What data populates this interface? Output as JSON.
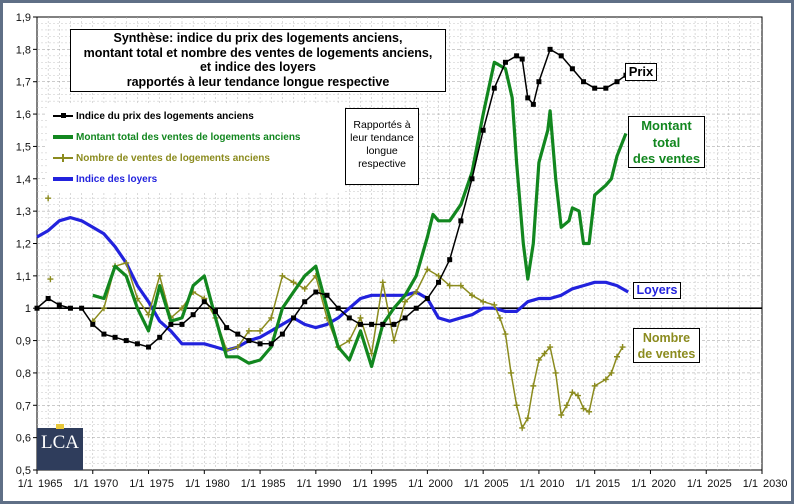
{
  "chart_data": {
    "type": "line",
    "title": "Synthèse: indice du prix des logements anciens,\nmontant total et nombre des ventes de logements anciens,\net indice des loyers\nrapportés à leur tendance longue respective",
    "note": "Rapportés à\nleur tendance\nlongue\nrespective",
    "ylim": [
      0.5,
      1.9
    ],
    "yticks": [
      "0,5",
      "0,6",
      "0,7",
      "0,8",
      "0,9",
      "1",
      "1,1",
      "1,2",
      "1,3",
      "1,4",
      "1,5",
      "1,6",
      "1,7",
      "1,8",
      "1,9"
    ],
    "xlim": [
      1965,
      2030
    ],
    "xticks": [
      {
        "value": 1965,
        "label": "1/1 1965"
      },
      {
        "value": 1970,
        "label": "1/1 1970"
      },
      {
        "value": 1975,
        "label": "1/1 1975"
      },
      {
        "value": 1980,
        "label": "1/1 1980"
      },
      {
        "value": 1985,
        "label": "1/1 1985"
      },
      {
        "value": 1990,
        "label": "1/1 1990"
      },
      {
        "value": 1995,
        "label": "1/1 1995"
      },
      {
        "value": 2000,
        "label": "1/1 2000"
      },
      {
        "value": 2005,
        "label": "1/1 2005"
      },
      {
        "value": 2010,
        "label": "1/1 2010"
      },
      {
        "value": 2015,
        "label": "1/1 2015"
      },
      {
        "value": 2020,
        "label": "1/1 2020"
      },
      {
        "value": 2025,
        "label": "1/1 2025"
      },
      {
        "value": 2030,
        "label": "1/1 2030"
      }
    ],
    "reference_line": 1.0,
    "series": [
      {
        "name": "Indice du prix des logements anciens",
        "end_label": "Prix",
        "color": "#000000",
        "marker": "square",
        "points": [
          [
            1965,
            1.0
          ],
          [
            1966,
            1.03
          ],
          [
            1967,
            1.01
          ],
          [
            1968,
            1.0
          ],
          [
            1969,
            1.0
          ],
          [
            1970,
            0.95
          ],
          [
            1971,
            0.92
          ],
          [
            1972,
            0.91
          ],
          [
            1973,
            0.9
          ],
          [
            1974,
            0.89
          ],
          [
            1975,
            0.88
          ],
          [
            1976,
            0.91
          ],
          [
            1977,
            0.95
          ],
          [
            1978,
            0.95
          ],
          [
            1979,
            0.98
          ],
          [
            1980,
            1.02
          ],
          [
            1981,
            0.99
          ],
          [
            1982,
            0.94
          ],
          [
            1983,
            0.92
          ],
          [
            1984,
            0.9
          ],
          [
            1985,
            0.89
          ],
          [
            1986,
            0.89
          ],
          [
            1987,
            0.92
          ],
          [
            1988,
            0.97
          ],
          [
            1989,
            1.02
          ],
          [
            1990,
            1.05
          ],
          [
            1991,
            1.04
          ],
          [
            1992,
            1.0
          ],
          [
            1993,
            0.97
          ],
          [
            1994,
            0.95
          ],
          [
            1995,
            0.95
          ],
          [
            1996,
            0.95
          ],
          [
            1997,
            0.95
          ],
          [
            1998,
            0.97
          ],
          [
            1999,
            1.0
          ],
          [
            2000,
            1.03
          ],
          [
            2001,
            1.08
          ],
          [
            2002,
            1.15
          ],
          [
            2003,
            1.27
          ],
          [
            2004,
            1.4
          ],
          [
            2005,
            1.55
          ],
          [
            2006,
            1.68
          ],
          [
            2007,
            1.76
          ],
          [
            2008,
            1.78
          ],
          [
            2008.5,
            1.77
          ],
          [
            2009,
            1.65
          ],
          [
            2009.5,
            1.63
          ],
          [
            2010,
            1.7
          ],
          [
            2011,
            1.8
          ],
          [
            2012,
            1.78
          ],
          [
            2013,
            1.74
          ],
          [
            2014,
            1.7
          ],
          [
            2015,
            1.68
          ],
          [
            2016,
            1.68
          ],
          [
            2017,
            1.7
          ],
          [
            2017.8,
            1.72
          ]
        ]
      },
      {
        "name": "Montant total des ventes de logements anciens",
        "end_label": "Montant\ntotal\ndes ventes",
        "color": "#12871f",
        "marker": "none",
        "points": [
          [
            1970,
            1.04
          ],
          [
            1971,
            1.03
          ],
          [
            1972,
            1.13
          ],
          [
            1973,
            1.1
          ],
          [
            1974,
            1.0
          ],
          [
            1975,
            0.93
          ],
          [
            1976,
            1.07
          ],
          [
            1977,
            0.96
          ],
          [
            1978,
            0.97
          ],
          [
            1979,
            1.07
          ],
          [
            1980,
            1.1
          ],
          [
            1981,
            0.97
          ],
          [
            1982,
            0.85
          ],
          [
            1983,
            0.85
          ],
          [
            1984,
            0.83
          ],
          [
            1985,
            0.84
          ],
          [
            1986,
            0.88
          ],
          [
            1987,
            1.0
          ],
          [
            1988,
            1.05
          ],
          [
            1989,
            1.1
          ],
          [
            1990,
            1.13
          ],
          [
            1991,
            1.0
          ],
          [
            1992,
            0.88
          ],
          [
            1993,
            0.84
          ],
          [
            1994,
            0.93
          ],
          [
            1995,
            0.82
          ],
          [
            1996,
            0.95
          ],
          [
            1997,
            1.0
          ],
          [
            1998,
            1.04
          ],
          [
            1999,
            1.1
          ],
          [
            2000,
            1.22
          ],
          [
            2000.5,
            1.29
          ],
          [
            2001,
            1.27
          ],
          [
            2002,
            1.27
          ],
          [
            2003,
            1.32
          ],
          [
            2004,
            1.42
          ],
          [
            2005,
            1.6
          ],
          [
            2006,
            1.76
          ],
          [
            2007,
            1.74
          ],
          [
            2007.6,
            1.65
          ],
          [
            2008,
            1.45
          ],
          [
            2008.6,
            1.2
          ],
          [
            2009,
            1.09
          ],
          [
            2009.5,
            1.2
          ],
          [
            2010,
            1.45
          ],
          [
            2010.8,
            1.55
          ],
          [
            2011,
            1.61
          ],
          [
            2011.5,
            1.4
          ],
          [
            2012,
            1.25
          ],
          [
            2012.7,
            1.27
          ],
          [
            2013,
            1.31
          ],
          [
            2013.6,
            1.3
          ],
          [
            2014,
            1.2
          ],
          [
            2014.5,
            1.2
          ],
          [
            2015,
            1.35
          ],
          [
            2016,
            1.38
          ],
          [
            2016.5,
            1.4
          ],
          [
            2017,
            1.47
          ],
          [
            2017.8,
            1.54
          ]
        ]
      },
      {
        "name": "Nombre de ventes de logements anciens",
        "end_label": "Nombre\nde ventes",
        "color": "#8b8b1e",
        "marker": "plus",
        "points": [
          [
            1966,
            1.34
          ],
          [
            1966.2,
            1.09
          ],
          [
            1970,
            0.96
          ],
          [
            1971,
            1.0
          ],
          [
            1972,
            1.13
          ],
          [
            1973,
            1.14
          ],
          [
            1974,
            1.03
          ],
          [
            1975,
            0.98
          ],
          [
            1976,
            1.1
          ],
          [
            1977,
            0.97
          ],
          [
            1978,
            1.0
          ],
          [
            1979,
            1.05
          ],
          [
            1980,
            1.03
          ],
          [
            1981,
            0.97
          ],
          [
            1982,
            0.87
          ],
          [
            1983,
            0.88
          ],
          [
            1984,
            0.93
          ],
          [
            1985,
            0.93
          ],
          [
            1986,
            0.97
          ],
          [
            1987,
            1.1
          ],
          [
            1988,
            1.08
          ],
          [
            1989,
            1.06
          ],
          [
            1990,
            1.1
          ],
          [
            1991,
            0.97
          ],
          [
            1992,
            0.88
          ],
          [
            1993,
            0.9
          ],
          [
            1994,
            0.97
          ],
          [
            1995,
            0.86
          ],
          [
            1996,
            1.08
          ],
          [
            1997,
            0.9
          ],
          [
            1998,
            1.02
          ],
          [
            1999,
            1.05
          ],
          [
            2000,
            1.12
          ],
          [
            2001,
            1.1
          ],
          [
            2002,
            1.07
          ],
          [
            2003,
            1.07
          ],
          [
            2004,
            1.04
          ],
          [
            2005,
            1.02
          ],
          [
            2006,
            1.01
          ],
          [
            2006.5,
            0.97
          ],
          [
            2007,
            0.92
          ],
          [
            2007.5,
            0.8
          ],
          [
            2008,
            0.7
          ],
          [
            2008.5,
            0.63
          ],
          [
            2009,
            0.66
          ],
          [
            2009.5,
            0.76
          ],
          [
            2010,
            0.84
          ],
          [
            2010.5,
            0.86
          ],
          [
            2011,
            0.88
          ],
          [
            2011.5,
            0.8
          ],
          [
            2012,
            0.67
          ],
          [
            2012.5,
            0.7
          ],
          [
            2013,
            0.74
          ],
          [
            2013.5,
            0.73
          ],
          [
            2014,
            0.69
          ],
          [
            2014.5,
            0.68
          ],
          [
            2015,
            0.76
          ],
          [
            2016,
            0.78
          ],
          [
            2016.5,
            0.8
          ],
          [
            2017,
            0.85
          ],
          [
            2017.5,
            0.88
          ]
        ]
      },
      {
        "name": "Indice des loyers",
        "end_label": "Loyers",
        "color": "#2222dd",
        "marker": "none",
        "points": [
          [
            1965,
            1.22
          ],
          [
            1966,
            1.24
          ],
          [
            1967,
            1.27
          ],
          [
            1968,
            1.28
          ],
          [
            1969,
            1.27
          ],
          [
            1970,
            1.25
          ],
          [
            1971,
            1.23
          ],
          [
            1972,
            1.19
          ],
          [
            1973,
            1.14
          ],
          [
            1974,
            1.07
          ],
          [
            1975,
            1.02
          ],
          [
            1976,
            0.96
          ],
          [
            1977,
            0.93
          ],
          [
            1978,
            0.89
          ],
          [
            1979,
            0.89
          ],
          [
            1980,
            0.89
          ],
          [
            1981,
            0.88
          ],
          [
            1982,
            0.87
          ],
          [
            1983,
            0.88
          ],
          [
            1984,
            0.9
          ],
          [
            1985,
            0.91
          ],
          [
            1986,
            0.93
          ],
          [
            1987,
            0.95
          ],
          [
            1988,
            0.97
          ],
          [
            1989,
            0.95
          ],
          [
            1990,
            0.94
          ],
          [
            1991,
            0.95
          ],
          [
            1992,
            0.97
          ],
          [
            1993,
            1.0
          ],
          [
            1994,
            1.03
          ],
          [
            1995,
            1.04
          ],
          [
            1996,
            1.04
          ],
          [
            1997,
            1.04
          ],
          [
            1998,
            1.04
          ],
          [
            1999,
            1.05
          ],
          [
            2000,
            1.03
          ],
          [
            2001,
            0.97
          ],
          [
            2002,
            0.96
          ],
          [
            2003,
            0.97
          ],
          [
            2004,
            0.98
          ],
          [
            2005,
            1.0
          ],
          [
            2006,
            1.0
          ],
          [
            2007,
            0.99
          ],
          [
            2008,
            0.99
          ],
          [
            2009,
            1.02
          ],
          [
            2010,
            1.03
          ],
          [
            2011,
            1.03
          ],
          [
            2012,
            1.04
          ],
          [
            2013,
            1.06
          ],
          [
            2014,
            1.07
          ],
          [
            2015,
            1.08
          ],
          [
            2016,
            1.08
          ],
          [
            2017,
            1.07
          ],
          [
            2018,
            1.05
          ]
        ]
      }
    ]
  },
  "logo": {
    "text": "LCA"
  }
}
